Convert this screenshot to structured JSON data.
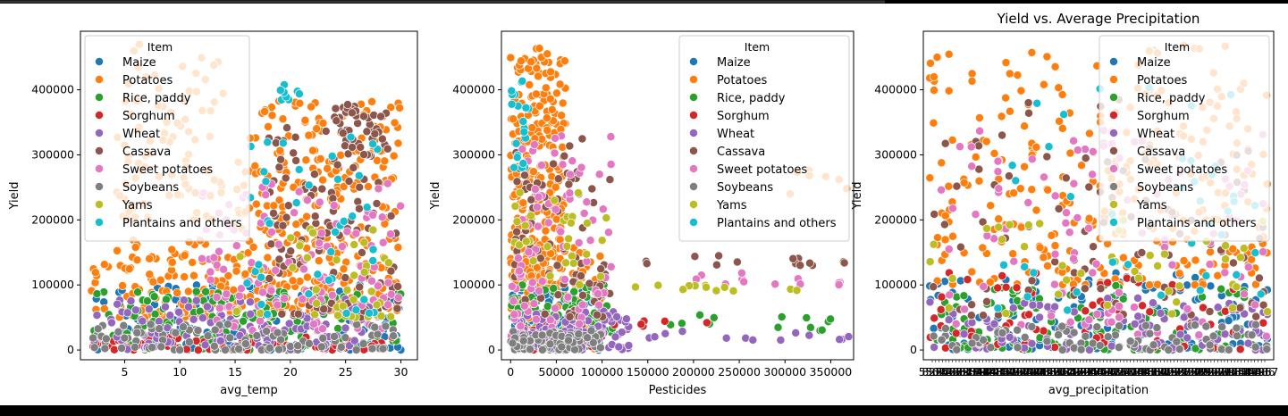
{
  "chart_data": [
    {
      "type": "scatter",
      "title": "",
      "xlabel": "avg_temp",
      "ylabel": "Yield",
      "xlim": [
        1,
        31.5
      ],
      "ylim": [
        -15000,
        490000
      ],
      "x_ticks": [
        5,
        10,
        15,
        20,
        25,
        30
      ],
      "x_tick_labels": [
        "5",
        "10",
        "15",
        "20",
        "25",
        "30"
      ],
      "y_ticks": [
        0,
        100000,
        200000,
        300000,
        400000
      ],
      "y_tick_labels": [
        "0",
        "100000",
        "200000",
        "300000",
        "400000"
      ],
      "legend": {
        "title": "Item",
        "placement": "upper-left",
        "entries": [
          "Maize",
          "Potatoes",
          "Rice, paddy",
          "Sorghum",
          "Wheat",
          "Cassava",
          "Sweet potatoes",
          "Soybeans",
          "Yams",
          "Plantains and others"
        ]
      },
      "series": [
        {
          "name": "Maize",
          "color": "#1f77b4",
          "clusters": [
            [
              2,
              30,
              0,
              110000,
              150
            ]
          ]
        },
        {
          "name": "Potatoes",
          "color": "#ff7f0e",
          "clusters": [
            [
              2,
              15,
              50000,
              170000,
              120
            ],
            [
              15,
              30,
              60000,
              385000,
              320
            ],
            [
              4,
              14,
              200000,
              470000,
              90
            ]
          ]
        },
        {
          "name": "Rice, paddy",
          "color": "#2ca02c",
          "clusters": [
            [
              2,
              30,
              0,
              90000,
              140
            ]
          ]
        },
        {
          "name": "Sorghum",
          "color": "#d62728",
          "clusters": [
            [
              2,
              30,
              0,
              20000,
              80
            ]
          ]
        },
        {
          "name": "Wheat",
          "color": "#9467bd",
          "clusters": [
            [
              2,
              28,
              0,
              80000,
              120
            ]
          ]
        },
        {
          "name": "Cassava",
          "color": "#8c564b",
          "clusters": [
            [
              18,
              30,
              50000,
              350000,
              120
            ],
            [
              24,
              29,
              300000,
              385000,
              40
            ]
          ]
        },
        {
          "name": "Sweet potatoes",
          "color": "#e377c2",
          "clusters": [
            [
              12,
              30,
              30000,
              260000,
              120
            ]
          ]
        },
        {
          "name": "Soybeans",
          "color": "#7f7f7f",
          "clusters": [
            [
              2,
              30,
              0,
              40000,
              100
            ]
          ]
        },
        {
          "name": "Yams",
          "color": "#bcbd22",
          "clusters": [
            [
              14,
              30,
              50000,
              200000,
              40
            ]
          ]
        },
        {
          "name": "Plantains and others",
          "color": "#17becf",
          "clusters": [
            [
              16,
              29,
              50000,
              350000,
              40
            ],
            [
              19,
              21,
              380000,
              420000,
              8
            ]
          ]
        }
      ]
    },
    {
      "type": "scatter",
      "title": "",
      "xlabel": "Pesticides",
      "ylabel": "Yield",
      "xlim": [
        -10000,
        375000
      ],
      "ylim": [
        -15000,
        490000
      ],
      "x_ticks": [
        0,
        50000,
        100000,
        150000,
        200000,
        250000,
        300000,
        350000
      ],
      "x_tick_labels": [
        "0",
        "50000",
        "100000",
        "150000",
        "200000",
        "250000",
        "300000",
        "350000"
      ],
      "y_ticks": [
        0,
        100000,
        200000,
        300000,
        400000
      ],
      "y_tick_labels": [
        "0",
        "100000",
        "200000",
        "300000",
        "400000"
      ],
      "legend": {
        "title": "Item",
        "placement": "upper-right",
        "entries": [
          "Maize",
          "Potatoes",
          "Rice, paddy",
          "Sorghum",
          "Wheat",
          "Cassava",
          "Sweet potatoes",
          "Soybeans",
          "Yams",
          "Plantains and others"
        ]
      },
      "series": [
        {
          "name": "Maize",
          "color": "#1f77b4",
          "clusters": [
            [
              0,
              100000,
              0,
              100000,
              150
            ]
          ]
        },
        {
          "name": "Potatoes",
          "color": "#ff7f0e",
          "clusters": [
            [
              0,
              60000,
              100000,
              470000,
              260
            ],
            [
              0,
              100000,
              0,
              160000,
              100
            ],
            [
              300000,
              370000,
              235000,
              280000,
              7
            ]
          ]
        },
        {
          "name": "Rice, paddy",
          "color": "#2ca02c",
          "clusters": [
            [
              0,
              110000,
              0,
              100000,
              120
            ],
            [
              110000,
              370000,
              30000,
              55000,
              14
            ]
          ]
        },
        {
          "name": "Sorghum",
          "color": "#d62728",
          "clusters": [
            [
              0,
              100000,
              0,
              40000,
              60
            ],
            [
              110000,
              250000,
              35000,
              45000,
              6
            ]
          ]
        },
        {
          "name": "Wheat",
          "color": "#9467bd",
          "clusters": [
            [
              0,
              130000,
              0,
              60000,
              110
            ],
            [
              130000,
              370000,
              15000,
              30000,
              14
            ]
          ]
        },
        {
          "name": "Cassava",
          "color": "#8c564b",
          "clusters": [
            [
              0,
              110000,
              50000,
              330000,
              80
            ],
            [
              130000,
              370000,
              130000,
              150000,
              14
            ]
          ]
        },
        {
          "name": "Sweet potatoes",
          "color": "#e377c2",
          "clusters": [
            [
              0,
              110000,
              20000,
              330000,
              90
            ],
            [
              160000,
              370000,
              100000,
              120000,
              12
            ]
          ]
        },
        {
          "name": "Soybeans",
          "color": "#7f7f7f",
          "clusters": [
            [
              0,
              100000,
              0,
              30000,
              80
            ]
          ]
        },
        {
          "name": "Yams",
          "color": "#bcbd22",
          "clusters": [
            [
              0,
              110000,
              100000,
              250000,
              30
            ],
            [
              130000,
              370000,
              90000,
              100000,
              12
            ]
          ]
        },
        {
          "name": "Plantains and others",
          "color": "#17becf",
          "clusters": [
            [
              0,
              20000,
              280000,
              420000,
              20
            ]
          ]
        }
      ]
    },
    {
      "type": "scatter",
      "title": "Yield vs. Average Precipitation",
      "xlabel": "avg_precipitation",
      "ylabel": "Yield",
      "xlim": [
        -2,
        102
      ],
      "ylim": [
        -15000,
        490000
      ],
      "x_ticks": "many overlapping categorical labels (unreadable)",
      "y_ticks": [
        0,
        100000,
        200000,
        300000,
        400000
      ],
      "y_tick_labels": [
        "0",
        "100000",
        "200000",
        "300000",
        "400000"
      ],
      "legend": {
        "title": "Item",
        "placement": "upper-right",
        "entries": [
          "Maize",
          "Potatoes",
          "Rice, paddy",
          "Sorghum",
          "Wheat",
          "Cassava",
          "Sweet potatoes",
          "Soybeans",
          "Yams",
          "Plantains and others"
        ]
      },
      "series": [
        {
          "name": "Maize",
          "color": "#1f77b4",
          "clusters": [
            [
              0,
              100,
              0,
              120000,
              130
            ]
          ]
        },
        {
          "name": "Potatoes",
          "color": "#ff7f0e",
          "clusters": [
            [
              0,
              100,
              100000,
              470000,
              280
            ]
          ]
        },
        {
          "name": "Rice, paddy",
          "color": "#2ca02c",
          "clusters": [
            [
              0,
              100,
              0,
              100000,
              120
            ]
          ]
        },
        {
          "name": "Sorghum",
          "color": "#d62728",
          "clusters": [
            [
              0,
              100,
              0,
              120000,
              70
            ]
          ]
        },
        {
          "name": "Wheat",
          "color": "#9467bd",
          "clusters": [
            [
              0,
              100,
              0,
              80000,
              100
            ]
          ]
        },
        {
          "name": "Cassava",
          "color": "#8c564b",
          "clusters": [
            [
              0,
              100,
              50000,
              390000,
              90
            ]
          ]
        },
        {
          "name": "Sweet potatoes",
          "color": "#e377c2",
          "clusters": [
            [
              0,
              100,
              20000,
              340000,
              100
            ]
          ]
        },
        {
          "name": "Soybeans",
          "color": "#7f7f7f",
          "clusters": [
            [
              0,
              100,
              0,
              40000,
              80
            ]
          ]
        },
        {
          "name": "Yams",
          "color": "#bcbd22",
          "clusters": [
            [
              0,
              100,
              50000,
              200000,
              40
            ]
          ]
        },
        {
          "name": "Plantains and others",
          "color": "#17becf",
          "clusters": [
            [
              20,
              100,
              50000,
              420000,
              40
            ]
          ]
        }
      ]
    }
  ]
}
